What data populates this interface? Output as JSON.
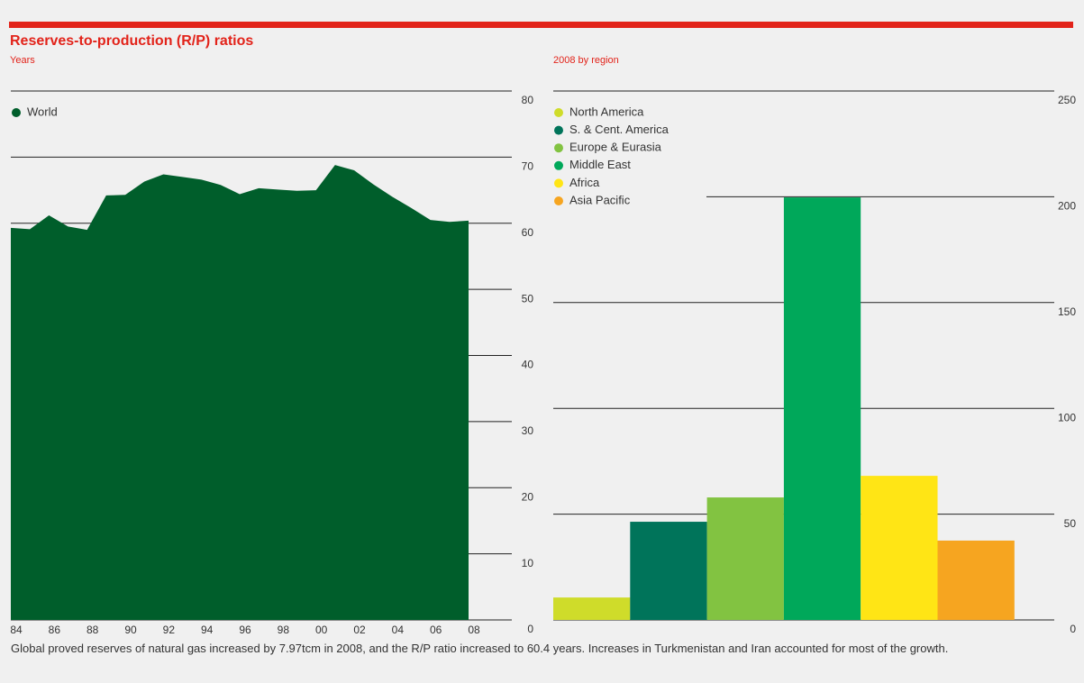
{
  "title": "Reserves-to-production (R/P) ratios",
  "caption": "Global proved reserves of natural gas increased by 7.97tcm in 2008, and the R/P ratio increased to 60.4 years. Increases in Turkmenistan and Iran accounted for most of the growth.",
  "chart_data": [
    {
      "type": "area",
      "subtitle": "Years",
      "categories": [
        "84",
        null,
        "86",
        null,
        "88",
        null,
        "90",
        null,
        "92",
        null,
        "94",
        null,
        "96",
        null,
        "98",
        null,
        "00",
        null,
        "02",
        null,
        "04",
        null,
        "06",
        null,
        "08"
      ],
      "series": [
        {
          "name": "World",
          "color": "#005e2b",
          "values": [
            59.3,
            59.1,
            61.2,
            59.5,
            59.0,
            64.2,
            64.3,
            66.3,
            67.4,
            67.0,
            66.6,
            65.8,
            64.4,
            65.3,
            65.1,
            64.9,
            65.0,
            68.8,
            68.0,
            65.9,
            64.0,
            62.3,
            60.5,
            60.2,
            60.4
          ]
        }
      ],
      "ylim": [
        0,
        80
      ],
      "yticks": [
        0,
        10,
        20,
        30,
        40,
        50,
        60,
        70,
        80
      ],
      "grid": true
    },
    {
      "type": "bar",
      "subtitle": "2008 by region",
      "categories": [
        "North America",
        "S. & Cent. America",
        "Europe & Eurasia",
        "Middle East",
        "Africa",
        "Asia Pacific"
      ],
      "values": [
        10.6,
        46.4,
        57.9,
        199.7,
        68.1,
        37.5
      ],
      "colors": [
        "#cfdc2a",
        "#00745a",
        "#82c341",
        "#00a85a",
        "#ffe515",
        "#f6a520"
      ],
      "ylim": [
        0,
        250
      ],
      "yticks": [
        0,
        50,
        100,
        150,
        200,
        250
      ],
      "grid": true
    }
  ]
}
